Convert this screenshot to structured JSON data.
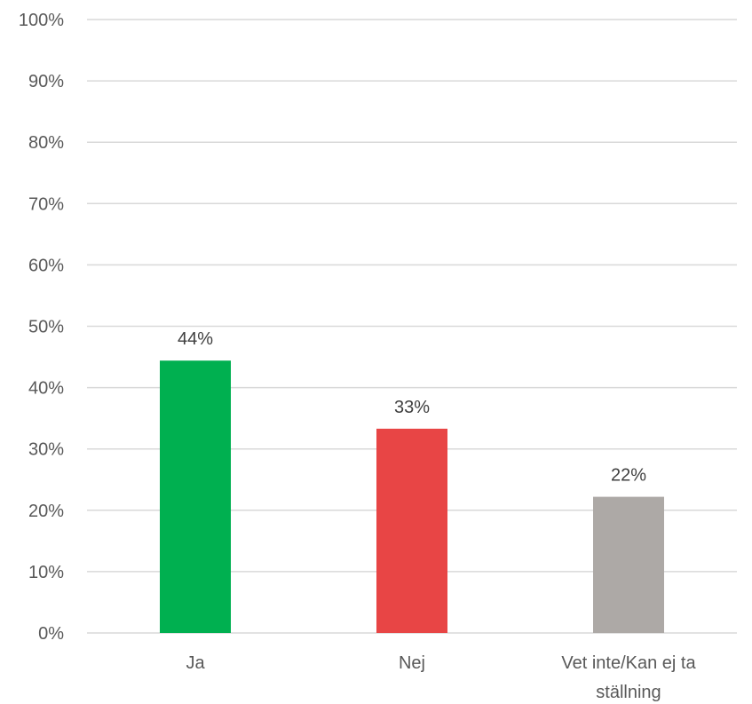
{
  "chart_data": {
    "type": "bar",
    "title": "",
    "xlabel": "",
    "ylabel": "",
    "categories": [
      [
        "Ja"
      ],
      [
        "Nej"
      ],
      [
        "Vet inte/Kan ej ta",
        "ställning"
      ]
    ],
    "values": [
      44.4,
      33.3,
      22.2
    ],
    "data_labels": [
      "44%",
      "33%",
      "22%"
    ],
    "colors": [
      "#00b050",
      "#e84545",
      "#ada9a6"
    ],
    "ylim": [
      0,
      100
    ],
    "yticks": [
      0,
      10,
      20,
      30,
      40,
      50,
      60,
      70,
      80,
      90,
      100
    ],
    "ytick_labels": [
      "0%",
      "10%",
      "20%",
      "30%",
      "40%",
      "50%",
      "60%",
      "70%",
      "80%",
      "90%",
      "100%"
    ],
    "grid": true,
    "legend": "none"
  }
}
